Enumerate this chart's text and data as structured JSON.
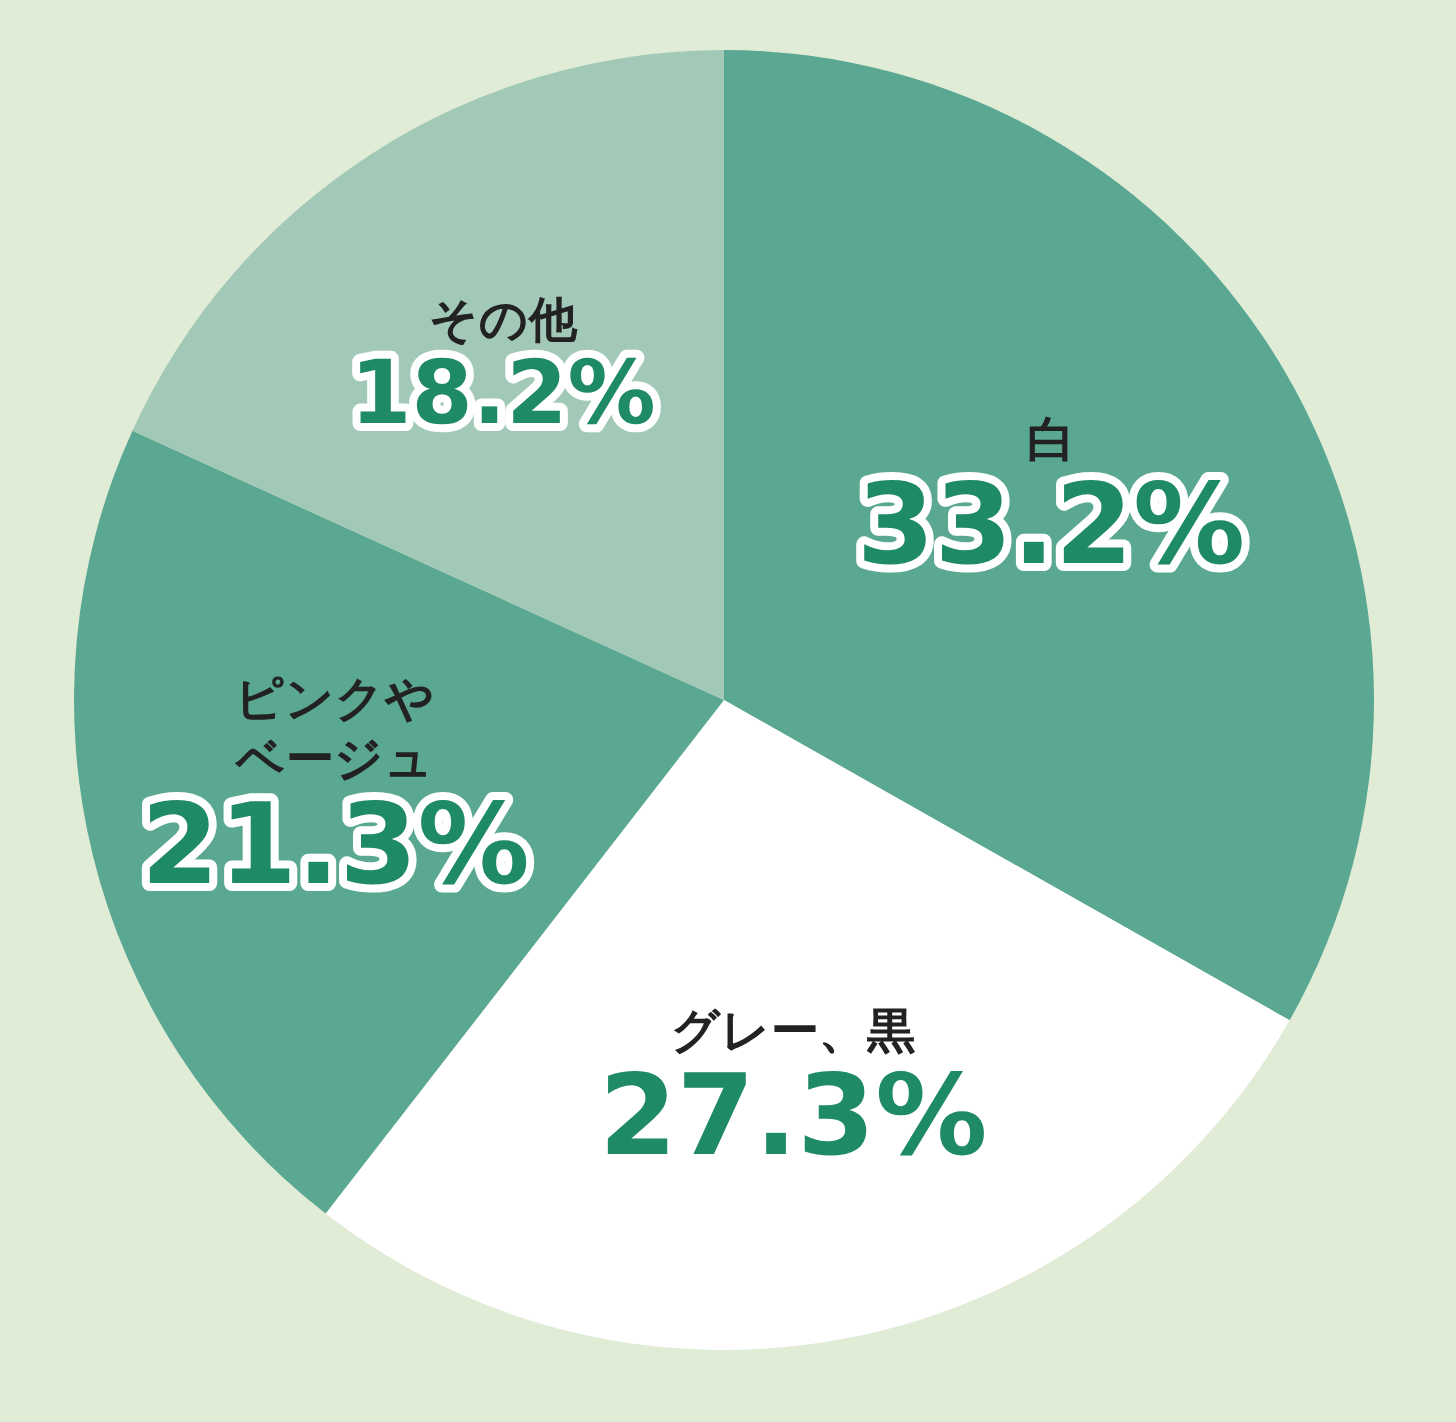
{
  "chart_data": {
    "type": "pie",
    "categories": [
      "白",
      "グレー、黒",
      "ピンクやベージュ",
      "その他"
    ],
    "values": [
      33.2,
      27.3,
      21.3,
      18.2
    ],
    "value_labels": [
      "33.2%",
      "27.3%",
      "21.3%",
      "18.2%"
    ],
    "colors": [
      "#5aa892",
      "#ffffff",
      "#5aa892",
      "#a2c9b7"
    ],
    "legend": false
  }
}
